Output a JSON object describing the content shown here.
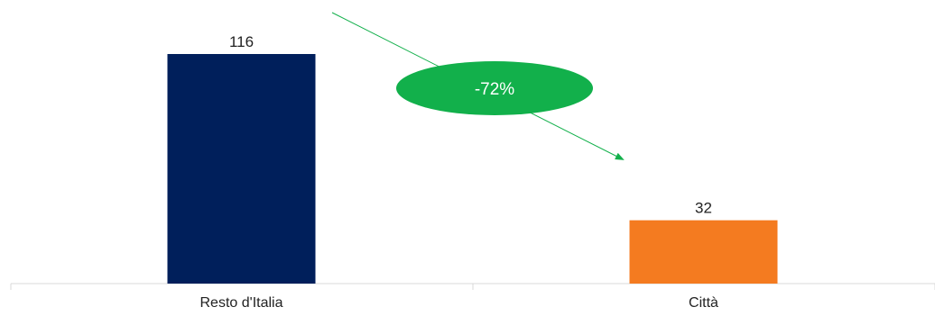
{
  "chart_data": {
    "type": "bar",
    "categories": [
      "Resto d'Italia",
      "Città"
    ],
    "values": [
      116,
      32
    ],
    "colors": [
      "#001f5b",
      "#f47b20"
    ],
    "value_labels": [
      "116",
      "32"
    ],
    "ylim": [
      0,
      135
    ],
    "grid": false,
    "legend": "none",
    "annotation": {
      "text": "-72%",
      "color": "#12b04b",
      "arrow_color": "#12b04b"
    }
  }
}
